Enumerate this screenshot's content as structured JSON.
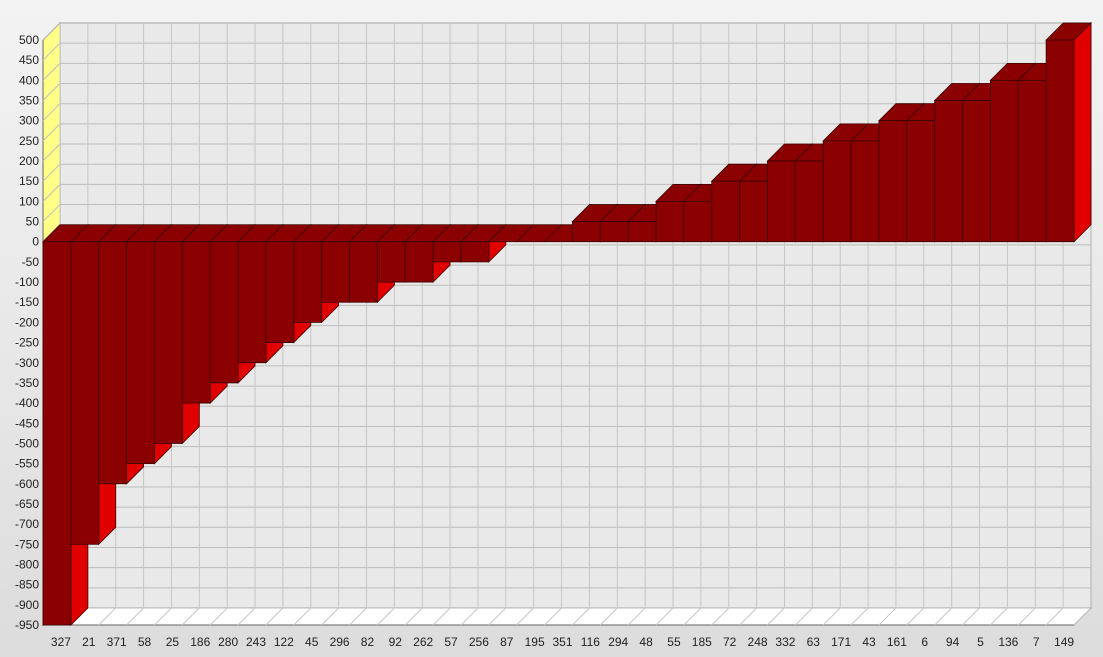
{
  "chart_data": {
    "type": "bar",
    "style": "3d-stepped",
    "bar_color": "#8b0000",
    "bar_face_color": "#e00000",
    "wall_color": "#ffff88",
    "ylim": [
      -950,
      500
    ],
    "y_ticks": [
      500,
      450,
      400,
      350,
      300,
      250,
      200,
      150,
      100,
      50,
      0,
      -50,
      -100,
      -150,
      -200,
      -250,
      -300,
      -350,
      -400,
      -450,
      -500,
      -550,
      -600,
      -650,
      -700,
      -750,
      -800,
      -850,
      -900,
      -950
    ],
    "categories": [
      "327",
      "21",
      "371",
      "58",
      "25",
      "186",
      "280",
      "243",
      "122",
      "45",
      "296",
      "82",
      "92",
      "262",
      "57",
      "256",
      "87",
      "195",
      "351",
      "116",
      "294",
      "48",
      "55",
      "185",
      "72",
      "248",
      "332",
      "63",
      "171",
      "43",
      "161",
      "6",
      "94",
      "5",
      "136",
      "7",
      "149"
    ],
    "values": [
      -950,
      -750,
      -600,
      -550,
      -500,
      -400,
      -350,
      -300,
      -250,
      -200,
      -150,
      -150,
      -100,
      -100,
      -50,
      -50,
      0,
      0,
      0,
      50,
      50,
      50,
      100,
      100,
      150,
      150,
      200,
      200,
      250,
      250,
      300,
      300,
      350,
      350,
      400,
      400,
      500
    ],
    "grid": true,
    "legend": "none"
  }
}
